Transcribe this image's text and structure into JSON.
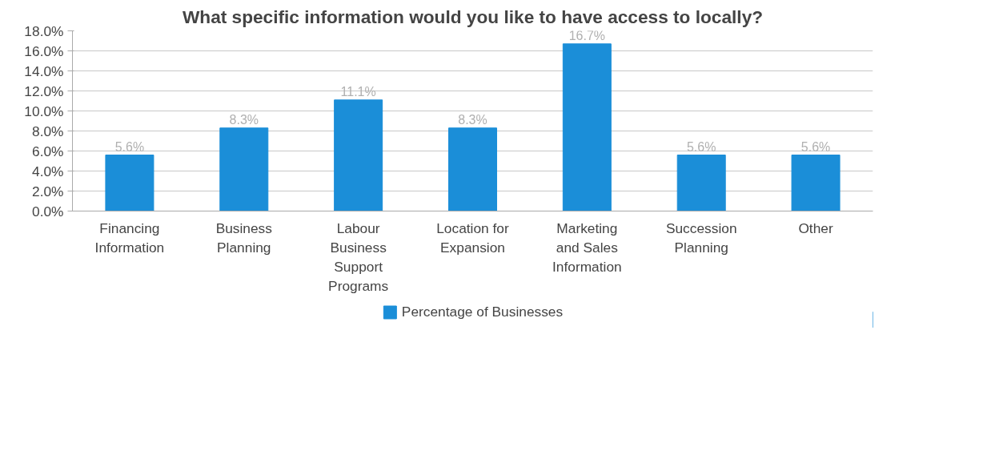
{
  "chart_data": {
    "type": "bar",
    "title": "What specific information would you like to have access to locally?",
    "categories": [
      "Financing\nInformation",
      "Business\nPlanning",
      "Labour\nBusiness\nSupport\nPrograms",
      "Location for\nExpansion",
      "Marketing\nand Sales\nInformation",
      "Succession\nPlanning",
      "Other"
    ],
    "series": [
      {
        "name": "Percentage of Businesses",
        "color": "#1b8ed8",
        "values": [
          5.6,
          8.3,
          11.1,
          8.3,
          16.7,
          5.6,
          5.6
        ],
        "value_labels": [
          "5.6%",
          "8.3%",
          "11.1%",
          "8.3%",
          "16.7%",
          "5.6%",
          "5.6%"
        ]
      }
    ],
    "ylim": [
      0,
      18
    ],
    "yticks": [
      {
        "value": 0,
        "label": "0.0%"
      },
      {
        "value": 2,
        "label": "2.0%"
      },
      {
        "value": 4,
        "label": "4.0%"
      },
      {
        "value": 6,
        "label": "6.0%"
      },
      {
        "value": 8,
        "label": "8.0%"
      },
      {
        "value": 10,
        "label": "10.0%"
      },
      {
        "value": 12,
        "label": "12.0%"
      },
      {
        "value": 14,
        "label": "14.0%"
      },
      {
        "value": 16,
        "label": "16.0%"
      },
      {
        "value": 18,
        "label": "18.0%"
      }
    ],
    "grid": "y",
    "legend": "bottom"
  }
}
